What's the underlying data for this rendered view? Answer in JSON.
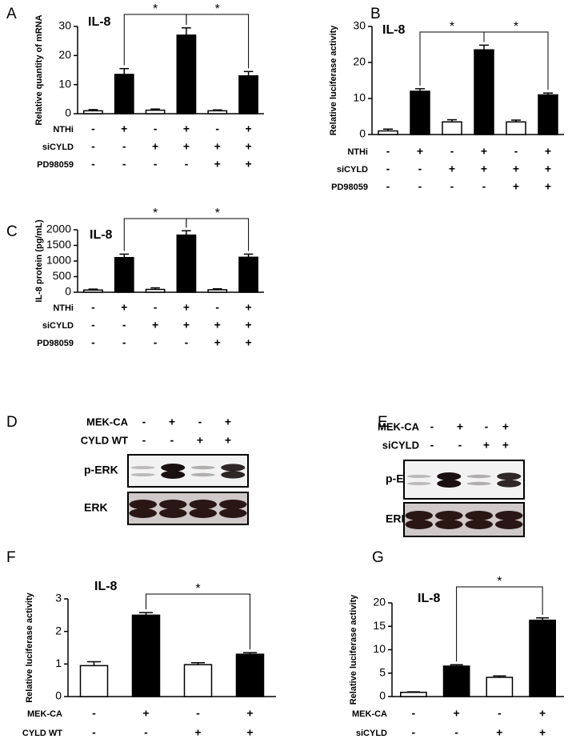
{
  "chart_data": [
    {
      "type": "bar",
      "panel": "A",
      "title": "IL-8",
      "y_label": "Relative quantity of mRNA",
      "values": [
        1,
        13.5,
        1.2,
        27,
        1,
        13
      ],
      "errors": [
        0.4,
        2,
        0.4,
        2.5,
        0.3,
        1.5
      ],
      "colors": [
        "#ffffff",
        "#000000",
        "#ffffff",
        "#000000",
        "#ffffff",
        "#000000"
      ],
      "ylim": [
        0,
        30
      ],
      "yticks": [
        0,
        10,
        20,
        30
      ],
      "conditions": [
        {
          "name": "NTHi",
          "values": [
            "-",
            "+",
            "-",
            "+",
            "-",
            "+"
          ]
        },
        {
          "name": "siCYLD",
          "values": [
            "-",
            "-",
            "+",
            "+",
            "+",
            "+"
          ]
        },
        {
          "name": "PD98059",
          "values": [
            "-",
            "-",
            "-",
            "-",
            "+",
            "+"
          ]
        }
      ],
      "annotations": [
        {
          "text": "*",
          "bars": [
            1,
            3
          ]
        },
        {
          "text": "*",
          "bars": [
            3,
            5
          ]
        }
      ]
    },
    {
      "type": "bar",
      "panel": "B",
      "title": "IL-8",
      "y_label": "Relative luciferase activity",
      "values": [
        1,
        12,
        3.5,
        23.5,
        3.5,
        11
      ],
      "errors": [
        0.5,
        0.7,
        0.6,
        1.3,
        0.5,
        0.5
      ],
      "colors": [
        "#ffffff",
        "#000000",
        "#ffffff",
        "#000000",
        "#ffffff",
        "#000000"
      ],
      "ylim": [
        0,
        30
      ],
      "yticks": [
        0,
        10,
        20,
        30
      ],
      "conditions": [
        {
          "name": "NTHi",
          "values": [
            "-",
            "+",
            "-",
            "+",
            "-",
            "+"
          ]
        },
        {
          "name": "siCYLD",
          "values": [
            "-",
            "-",
            "+",
            "+",
            "+",
            "+"
          ]
        },
        {
          "name": "PD98059",
          "values": [
            "-",
            "-",
            "-",
            "-",
            "+",
            "+"
          ]
        }
      ],
      "annotations": [
        {
          "text": "*",
          "bars": [
            1,
            3
          ]
        },
        {
          "text": "*",
          "bars": [
            3,
            5
          ]
        }
      ]
    },
    {
      "type": "bar",
      "panel": "C",
      "title": "IL-8",
      "y_label": "IL-8 protein (pg/mL)",
      "values": [
        70,
        1110,
        90,
        1830,
        80,
        1120
      ],
      "errors": [
        30,
        110,
        50,
        140,
        30,
        100
      ],
      "colors": [
        "#ffffff",
        "#000000",
        "#ffffff",
        "#000000",
        "#ffffff",
        "#000000"
      ],
      "ylim": [
        0,
        2000
      ],
      "yticks": [
        0,
        500,
        1000,
        1500,
        2000
      ],
      "conditions": [
        {
          "name": "NTHi",
          "values": [
            "-",
            "+",
            "-",
            "+",
            "-",
            "+"
          ]
        },
        {
          "name": "siCYLD",
          "values": [
            "-",
            "-",
            "+",
            "+",
            "+",
            "+"
          ]
        },
        {
          "name": "PD98059",
          "values": [
            "-",
            "-",
            "-",
            "-",
            "+",
            "+"
          ]
        }
      ],
      "annotations": [
        {
          "text": "*",
          "bars": [
            1,
            3
          ]
        },
        {
          "text": "*",
          "bars": [
            3,
            5
          ]
        }
      ]
    },
    {
      "type": "bar",
      "panel": "F",
      "title": "IL-8",
      "y_label": "Relative luciferase activity",
      "values": [
        0.95,
        2.5,
        0.98,
        1.3
      ],
      "errors": [
        0.12,
        0.08,
        0.06,
        0.05
      ],
      "colors": [
        "#ffffff",
        "#000000",
        "#ffffff",
        "#000000"
      ],
      "ylim": [
        0,
        3
      ],
      "yticks": [
        0,
        1,
        2,
        3
      ],
      "conditions": [
        {
          "name": "MEK-CA",
          "values": [
            "-",
            "+",
            "-",
            "+"
          ]
        },
        {
          "name": "CYLD WT",
          "values": [
            "-",
            "-",
            "+",
            "+"
          ]
        }
      ],
      "annotations": [
        {
          "text": "*",
          "bars": [
            1,
            3
          ]
        }
      ]
    },
    {
      "type": "bar",
      "panel": "G",
      "title": "IL-8",
      "y_label": "Relative luciferase activity",
      "values": [
        0.9,
        6.5,
        4.1,
        16.3
      ],
      "errors": [
        0.1,
        0.3,
        0.3,
        0.5
      ],
      "colors": [
        "#ffffff",
        "#000000",
        "#ffffff",
        "#000000"
      ],
      "ylim": [
        0,
        20
      ],
      "yticks": [
        0,
        5,
        10,
        15,
        20
      ],
      "conditions": [
        {
          "name": "MEK-CA",
          "values": [
            "-",
            "+",
            "-",
            "+"
          ]
        },
        {
          "name": "siCYLD",
          "values": [
            "-",
            "-",
            "+",
            "+"
          ]
        }
      ],
      "annotations": [
        {
          "text": "*",
          "bars": [
            1,
            3
          ]
        }
      ]
    }
  ],
  "blots": [
    {
      "panel": "D",
      "conditions": [
        {
          "name": "MEK-CA",
          "values": [
            "-",
            "+",
            "-",
            "+"
          ]
        },
        {
          "name": "CYLD WT",
          "values": [
            "-",
            "-",
            "+",
            "+"
          ]
        }
      ],
      "rows": [
        "p-ERK",
        "ERK"
      ]
    },
    {
      "panel": "E",
      "conditions": [
        {
          "name": "MEK-CA",
          "values": [
            "-",
            "+",
            "-",
            "+"
          ]
        },
        {
          "name": "siCYLD",
          "values": [
            "-",
            "-",
            "+",
            "+"
          ]
        }
      ],
      "rows": [
        "p-ERK",
        "ERK"
      ]
    }
  ]
}
